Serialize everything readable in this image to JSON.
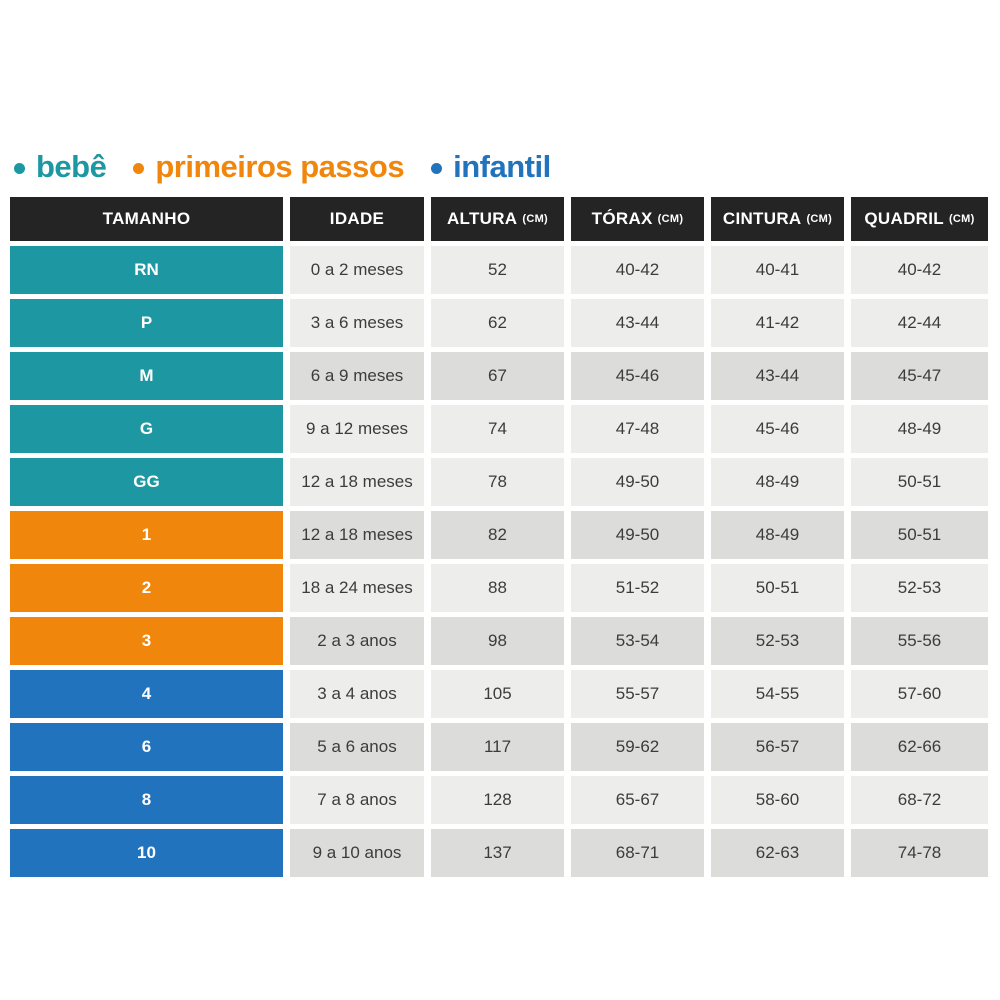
{
  "colors": {
    "bebe": "#1d98a3",
    "primeiros_passos": "#f0860b",
    "infantil": "#2173bd",
    "header_bg": "#242424",
    "row_light": "#edeeec",
    "row_dark": "#dcdcda",
    "cell_text": "#3c3c3c"
  },
  "legend": {
    "items": [
      {
        "label": "bebê"
      },
      {
        "label": "primeiros passos"
      },
      {
        "label": "infantil"
      }
    ]
  },
  "table": {
    "columns": [
      {
        "label": "TAMANHO",
        "unit": ""
      },
      {
        "label": "IDADE",
        "unit": ""
      },
      {
        "label": "ALTURA",
        "unit": "(CM)"
      },
      {
        "label": "TÓRAX",
        "unit": "(CM)"
      },
      {
        "label": "CINTURA",
        "unit": "(CM)"
      },
      {
        "label": "QUADRIL",
        "unit": "(CM)"
      }
    ],
    "row_styles": [
      {
        "group": "bebe",
        "shade": "light"
      },
      {
        "group": "bebe",
        "shade": "light"
      },
      {
        "group": "bebe",
        "shade": "dark"
      },
      {
        "group": "bebe",
        "shade": "light"
      },
      {
        "group": "bebe",
        "shade": "light"
      },
      {
        "group": "primeiros_passos",
        "shade": "dark"
      },
      {
        "group": "primeiros_passos",
        "shade": "light"
      },
      {
        "group": "primeiros_passos",
        "shade": "dark"
      },
      {
        "group": "infantil",
        "shade": "light"
      },
      {
        "group": "infantil",
        "shade": "dark"
      },
      {
        "group": "infantil",
        "shade": "light"
      },
      {
        "group": "infantil",
        "shade": "dark"
      }
    ]
  },
  "chart_data": {
    "type": "table",
    "title": "",
    "legend_position": "top",
    "columns": [
      "TAMANHO",
      "IDADE",
      "ALTURA (CM)",
      "TÓRAX (CM)",
      "CINTURA (CM)",
      "QUADRIL (CM)"
    ],
    "rows": [
      [
        "RN",
        "0 a 2 meses",
        "52",
        "40-42",
        "40-41",
        "40-42"
      ],
      [
        "P",
        "3 a 6 meses",
        "62",
        "43-44",
        "41-42",
        "42-44"
      ],
      [
        "M",
        "6 a 9 meses",
        "67",
        "45-46",
        "43-44",
        "45-47"
      ],
      [
        "G",
        "9 a 12 meses",
        "74",
        "47-48",
        "45-46",
        "48-49"
      ],
      [
        "GG",
        "12 a 18 meses",
        "78",
        "49-50",
        "48-49",
        "50-51"
      ],
      [
        "1",
        "12 a 18 meses",
        "82",
        "49-50",
        "48-49",
        "50-51"
      ],
      [
        "2",
        "18 a 24 meses",
        "88",
        "51-52",
        "50-51",
        "52-53"
      ],
      [
        "3",
        "2 a 3 anos",
        "98",
        "53-54",
        "52-53",
        "55-56"
      ],
      [
        "4",
        "3 a 4 anos",
        "105",
        "55-57",
        "54-55",
        "57-60"
      ],
      [
        "6",
        "5 a 6 anos",
        "117",
        "59-62",
        "56-57",
        "62-66"
      ],
      [
        "8",
        "7 a 8 anos",
        "128",
        "65-67",
        "58-60",
        "68-72"
      ],
      [
        "10",
        "9 a 10 anos",
        "137",
        "68-71",
        "62-63",
        "74-78"
      ]
    ],
    "groups": [
      {
        "name": "bebê",
        "sizes": [
          "RN",
          "P",
          "M",
          "G",
          "GG"
        ],
        "color": "#1d98a3"
      },
      {
        "name": "primeiros passos",
        "sizes": [
          "1",
          "2",
          "3"
        ],
        "color": "#f0860b"
      },
      {
        "name": "infantil",
        "sizes": [
          "4",
          "6",
          "8",
          "10"
        ],
        "color": "#2173bd"
      }
    ]
  }
}
